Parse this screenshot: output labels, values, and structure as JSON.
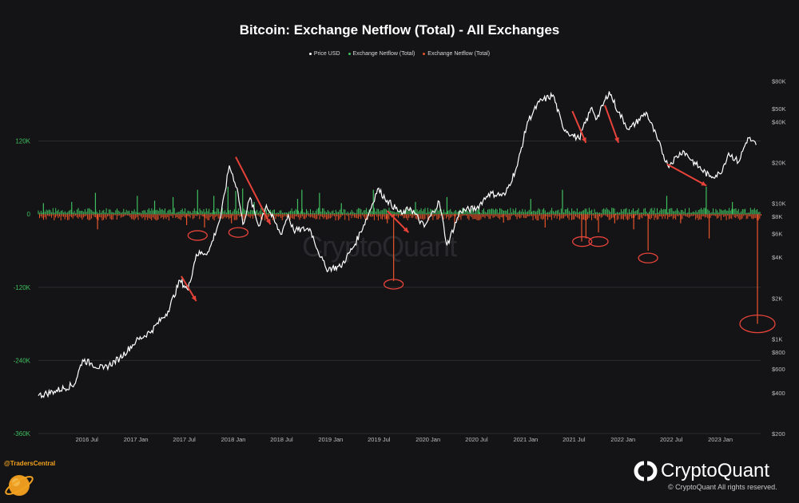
{
  "chart_data": {
    "type": "line",
    "title": "Bitcoin: Exchange Netflow (Total) - All Exchanges",
    "legend": [
      {
        "label": "Price USD",
        "color": "#ffffff"
      },
      {
        "label": "Exchange Netflow (Total)",
        "color": "#3fbf5f"
      },
      {
        "label": "Exchange Netflow (Total)",
        "color": "#e8552a"
      }
    ],
    "legend_position": "top-center",
    "x_ticks": [
      "2016 Jul",
      "2017 Jan",
      "2017 Jul",
      "2018 Jan",
      "2018 Jul",
      "2019 Jan",
      "2019 Jul",
      "2020 Jan",
      "2020 Jul",
      "2021 Jan",
      "2021 Jul",
      "2022 Jan",
      "2022 Jul",
      "2023 Jan"
    ],
    "left_axis": {
      "label": "",
      "ylim": [
        -360000,
        240000
      ],
      "ticks": [
        "120K",
        "0",
        "-120K",
        "-240K",
        "-360K"
      ],
      "color": "#3fbf5f"
    },
    "right_axis": {
      "label": "",
      "scale": "log",
      "ylim": [
        200,
        100000
      ],
      "ticks": [
        "$80K",
        "$50K",
        "$40K",
        "$20K",
        "$10K",
        "$8K",
        "$6K",
        "$4K",
        "$2K",
        "$1K",
        "$800",
        "$600",
        "$400",
        "$200"
      ]
    },
    "price_series": {
      "name": "Price USD",
      "color": "#ffffff",
      "points": [
        [
          "2016-01-01",
          380
        ],
        [
          "2016-03-01",
          410
        ],
        [
          "2016-05-15",
          460
        ],
        [
          "2016-06-15",
          700
        ],
        [
          "2016-07-15",
          660
        ],
        [
          "2016-09-01",
          600
        ],
        [
          "2016-11-01",
          720
        ],
        [
          "2017-01-01",
          960
        ],
        [
          "2017-03-01",
          1150
        ],
        [
          "2017-05-01",
          1600
        ],
        [
          "2017-06-15",
          2700
        ],
        [
          "2017-07-15",
          2300
        ],
        [
          "2017-08-15",
          4200
        ],
        [
          "2017-10-01",
          4400
        ],
        [
          "2017-11-15",
          8000
        ],
        [
          "2017-12-17",
          19000
        ],
        [
          "2018-01-15",
          13000
        ],
        [
          "2018-02-06",
          7000
        ],
        [
          "2018-03-05",
          11000
        ],
        [
          "2018-04-06",
          6800
        ],
        [
          "2018-05-05",
          9700
        ],
        [
          "2018-06-28",
          5900
        ],
        [
          "2018-07-25",
          8200
        ],
        [
          "2018-08-15",
          6300
        ],
        [
          "2018-10-15",
          6500
        ],
        [
          "2018-11-25",
          4000
        ],
        [
          "2018-12-15",
          3300
        ],
        [
          "2019-02-07",
          3400
        ],
        [
          "2019-04-02",
          5000
        ],
        [
          "2019-05-25",
          8500
        ],
        [
          "2019-06-26",
          12800
        ],
        [
          "2019-08-01",
          10500
        ],
        [
          "2019-09-25",
          8300
        ],
        [
          "2019-10-26",
          9300
        ],
        [
          "2019-12-18",
          6700
        ],
        [
          "2020-02-12",
          10300
        ],
        [
          "2020-03-12",
          4900
        ],
        [
          "2020-05-01",
          8800
        ],
        [
          "2020-07-01",
          9200
        ],
        [
          "2020-08-15",
          11800
        ],
        [
          "2020-10-15",
          11500
        ],
        [
          "2020-12-01",
          19000
        ],
        [
          "2021-01-08",
          40000
        ],
        [
          "2021-02-21",
          56000
        ],
        [
          "2021-04-14",
          63000
        ],
        [
          "2021-05-19",
          37000
        ],
        [
          "2021-06-22",
          32000
        ],
        [
          "2021-07-20",
          30000
        ],
        [
          "2021-09-06",
          51000
        ],
        [
          "2021-09-25",
          42000
        ],
        [
          "2021-11-10",
          67000
        ],
        [
          "2021-12-15",
          47000
        ],
        [
          "2022-01-24",
          35000
        ],
        [
          "2022-03-29",
          47000
        ],
        [
          "2022-05-12",
          29000
        ],
        [
          "2022-06-18",
          19000
        ],
        [
          "2022-08-14",
          24500
        ],
        [
          "2022-10-01",
          19400
        ],
        [
          "2022-11-21",
          15800
        ],
        [
          "2022-12-31",
          16500
        ],
        [
          "2023-02-01",
          23500
        ],
        [
          "2023-03-10",
          20200
        ],
        [
          "2023-04-14",
          30500
        ],
        [
          "2023-05-15",
          27000
        ]
      ]
    },
    "netflow_series": {
      "name": "Exchange Netflow (Total)",
      "positive_color": "#3fbf5f",
      "negative_color": "#e8552a",
      "spikes": [
        [
          "2016-01-20",
          18000
        ],
        [
          "2016-05-05",
          20000
        ],
        [
          "2016-08-02",
          35000
        ],
        [
          "2016-08-10",
          -25000
        ],
        [
          "2017-01-06",
          30000
        ],
        [
          "2017-03-12",
          22000
        ],
        [
          "2017-05-20",
          28000
        ],
        [
          "2017-07-10",
          -18000
        ],
        [
          "2017-08-20",
          40000
        ],
        [
          "2017-09-15",
          -22000
        ],
        [
          "2017-10-20",
          30000
        ],
        [
          "2017-12-12",
          45000
        ],
        [
          "2017-12-25",
          -15000
        ],
        [
          "2018-01-10",
          38000
        ],
        [
          "2018-02-05",
          42000
        ],
        [
          "2018-03-20",
          20000
        ],
        [
          "2018-08-30",
          25000
        ],
        [
          "2018-09-15",
          40000
        ],
        [
          "2018-11-20",
          35000
        ],
        [
          "2019-02-10",
          18000
        ],
        [
          "2019-06-10",
          40000
        ],
        [
          "2019-08-01",
          -15000
        ],
        [
          "2019-08-25",
          -110000
        ],
        [
          "2019-11-15",
          20000
        ],
        [
          "2020-03-12",
          28000
        ],
        [
          "2020-04-10",
          -20000
        ],
        [
          "2020-07-10",
          12000
        ],
        [
          "2020-10-10",
          -14000
        ],
        [
          "2021-01-20",
          25000
        ],
        [
          "2021-03-15",
          -22000
        ],
        [
          "2021-05-19",
          40000
        ],
        [
          "2021-07-30",
          -45000
        ],
        [
          "2021-08-15",
          -40000
        ],
        [
          "2021-10-01",
          -30000
        ],
        [
          "2021-12-01",
          -15000
        ],
        [
          "2022-02-10",
          -25000
        ],
        [
          "2022-04-05",
          -60000
        ],
        [
          "2022-06-14",
          30000
        ],
        [
          "2022-08-05",
          -15000
        ],
        [
          "2022-11-09",
          45000
        ],
        [
          "2022-11-20",
          -40000
        ],
        [
          "2023-02-15",
          20000
        ],
        [
          "2023-05-20",
          -180000
        ]
      ]
    },
    "annotations": {
      "circles": [
        {
          "date": "2017-08-20",
          "netflow": -35000
        },
        {
          "date": "2018-01-20",
          "netflow": -30000
        },
        {
          "date": "2019-08-25",
          "netflow": -115000
        },
        {
          "date": "2021-08-01",
          "netflow": -45000
        },
        {
          "date": "2021-10-01",
          "netflow": -45000
        },
        {
          "date": "2022-04-05",
          "netflow": -72000
        },
        {
          "date": "2023-05-20",
          "netflow": -180000
        }
      ],
      "arrows": [
        {
          "from": [
            "2018-01-10",
            22000
          ],
          "to": [
            "2018-05-20",
            7000
          ]
        },
        {
          "from": [
            "2017-06-20",
            2900
          ],
          "to": [
            "2017-08-15",
            1900
          ]
        },
        {
          "from": [
            "2019-08-01",
            8800
          ],
          "to": [
            "2019-10-20",
            6100
          ]
        },
        {
          "from": [
            "2021-06-25",
            48000
          ],
          "to": [
            "2021-08-15",
            28000
          ]
        },
        {
          "from": [
            "2021-10-25",
            53000
          ],
          "to": [
            "2021-12-15",
            28000
          ]
        },
        {
          "from": [
            "2022-06-15",
            19500
          ],
          "to": [
            "2022-11-10",
            13500
          ]
        }
      ],
      "color": "#e8433a"
    },
    "grid": true
  },
  "footer": {
    "handle": "@TradersCentral",
    "brand": "CryptoQuant",
    "copyright": "© CryptoQuant All rights reserved."
  },
  "watermark": "CryptoQuant"
}
